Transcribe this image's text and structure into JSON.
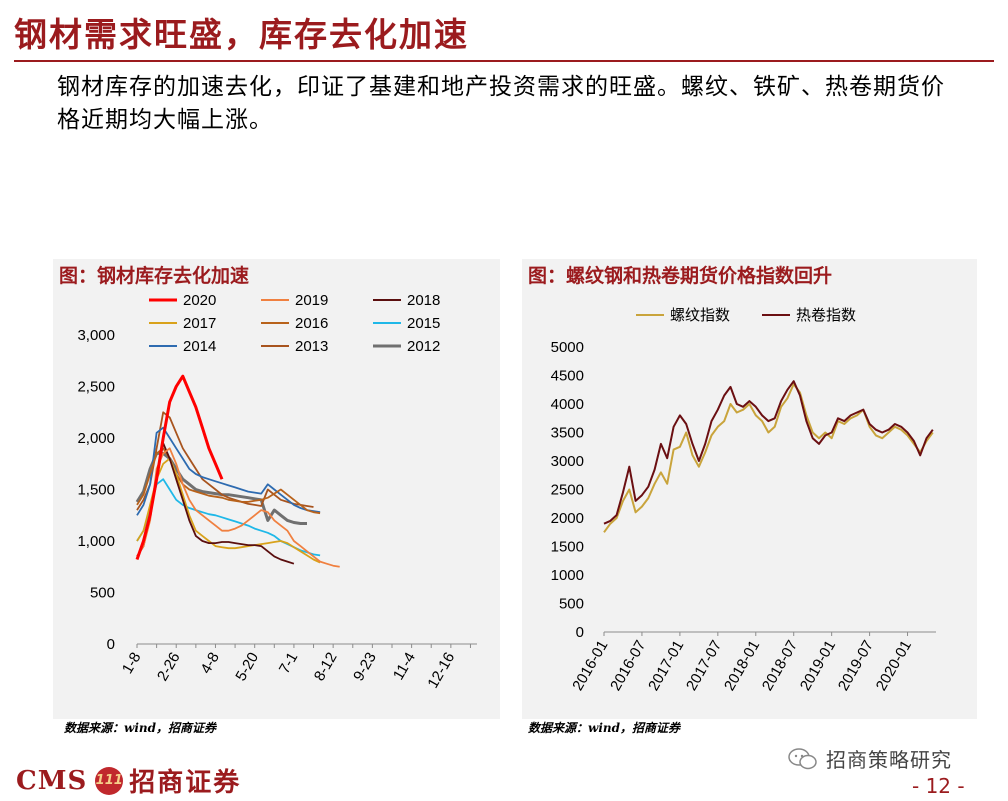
{
  "slide": {
    "title": "钢材需求旺盛，库存去化加速",
    "subtitle": "钢材库存的加速去化，印证了基建和地产投资需求的旺盛。螺纹、铁矿、热卷期货价格近期均大幅上涨。",
    "page_number": "- 12 -"
  },
  "footer": {
    "brand_en": "CMS",
    "brand_emblem": "111",
    "brand_cn": "招商证券",
    "wechat_account": "招商策略研究"
  },
  "left_chart": {
    "panel_title": "图：钢材库存去化加速",
    "source": "数据来源：wind，招商证券"
  },
  "right_chart": {
    "panel_title": "图：螺纹钢和热卷期货价格指数回升",
    "source": "数据来源：wind，招商证券"
  },
  "chart_data": [
    {
      "type": "line",
      "title": "图：钢材库存去化加速",
      "xlabel": "",
      "ylabel": "",
      "ylim": [
        0,
        3000
      ],
      "yticks": [
        "0",
        "500",
        "1,000",
        "1,500",
        "2,000",
        "2,500",
        "3,000"
      ],
      "x_tick_labels": [
        "1-8",
        "2-26",
        "4-8",
        "5-20",
        "7-1",
        "8-12",
        "9-23",
        "11-4",
        "12-16"
      ],
      "x_tick_index": [
        0,
        6,
        12,
        18,
        24,
        30,
        36,
        42,
        48
      ],
      "legend": [
        "2020",
        "2019",
        "2018",
        "2017",
        "2016",
        "2015",
        "2014",
        "2013",
        "2012"
      ],
      "legend_placement": "top",
      "series": [
        {
          "name": "2020",
          "color": "#ff0000",
          "values": [
            820,
            1000,
            1250,
            1600,
            2000,
            2350,
            2500,
            2600,
            2450,
            2300,
            2100,
            1900,
            1750,
            1600
          ]
        },
        {
          "name": "2019",
          "color": "#f08040",
          "values": [
            850,
            950,
            1200,
            1700,
            1850,
            1900,
            1750,
            1550,
            1400,
            1300,
            1250,
            1200,
            1150,
            1100,
            1100,
            1120,
            1150,
            1200,
            1250,
            1300,
            1280,
            1200,
            1150,
            1100,
            1000,
            950,
            900,
            850,
            800,
            780,
            760,
            750
          ]
        },
        {
          "name": "2018",
          "color": "#5a0e0e",
          "values": [
            850,
            950,
            1250,
            1600,
            1950,
            1800,
            1600,
            1400,
            1200,
            1050,
            1000,
            980,
            980,
            990,
            990,
            980,
            970,
            960,
            960,
            950,
            900,
            850,
            820,
            800,
            780
          ]
        },
        {
          "name": "2017",
          "color": "#d9a21b",
          "values": [
            1000,
            1100,
            1350,
            1600,
            1750,
            1800,
            1650,
            1450,
            1250,
            1100,
            1050,
            1000,
            950,
            940,
            930,
            930,
            940,
            950,
            960,
            970,
            980,
            990,
            1000,
            980,
            940,
            900,
            860,
            820,
            790
          ]
        },
        {
          "name": "2016",
          "color": "#b8621b",
          "values": [
            1350,
            1450,
            1650,
            1850,
            1900,
            1800,
            1650,
            1550,
            1500,
            1480,
            1460,
            1440,
            1430,
            1420,
            1400,
            1390,
            1380,
            1380,
            1390,
            1400,
            1420,
            1460,
            1500,
            1450,
            1400,
            1350,
            1300,
            1280,
            1270
          ]
        },
        {
          "name": "2015",
          "color": "#1fb8e8",
          "values": [
            1000,
            1100,
            1300,
            1550,
            1600,
            1500,
            1400,
            1350,
            1320,
            1300,
            1280,
            1260,
            1250,
            1230,
            1210,
            1190,
            1170,
            1150,
            1120,
            1100,
            1080,
            1050,
            1000,
            970,
            940,
            910,
            890,
            870,
            860
          ]
        },
        {
          "name": "2014",
          "color": "#2e6bb0",
          "values": [
            1250,
            1350,
            1550,
            2050,
            2100,
            2000,
            1900,
            1800,
            1700,
            1650,
            1620,
            1600,
            1580,
            1560,
            1540,
            1520,
            1500,
            1480,
            1470,
            1460,
            1550,
            1500,
            1450,
            1400,
            1350,
            1320,
            1300,
            1290,
            1280
          ]
        },
        {
          "name": "2013",
          "color": "#a8541e",
          "values": [
            1300,
            1400,
            1550,
            1900,
            2250,
            2200,
            2050,
            1900,
            1800,
            1700,
            1600,
            1550,
            1500,
            1450,
            1420,
            1400,
            1380,
            1360,
            1350,
            1340,
            1500,
            1450,
            1400,
            1380,
            1360,
            1350,
            1340,
            1330
          ]
        },
        {
          "name": "2012",
          "color": "#707070",
          "values": [
            1380,
            1480,
            1700,
            1850,
            1850,
            1800,
            1700,
            1600,
            1550,
            1500,
            1480,
            1470,
            1460,
            1450,
            1450,
            1440,
            1430,
            1420,
            1410,
            1400,
            1200,
            1300,
            1250,
            1200,
            1180,
            1170,
            1170
          ]
        }
      ]
    },
    {
      "type": "line",
      "title": "图：螺纹钢和热卷期货价格指数回升",
      "xlabel": "",
      "ylabel": "",
      "ylim": [
        0,
        5000
      ],
      "yticks": [
        "0",
        "500",
        "1000",
        "1500",
        "2000",
        "2500",
        "3000",
        "3500",
        "4000",
        "4500",
        "5000"
      ],
      "x_tick_labels": [
        "2016-01",
        "2016-07",
        "2017-01",
        "2017-07",
        "2018-01",
        "2018-07",
        "2019-01",
        "2019-07",
        "2020-01"
      ],
      "x_tick_month_index": [
        0,
        6,
        12,
        18,
        24,
        30,
        36,
        42,
        48
      ],
      "x_range_months": [
        0,
        52.5
      ],
      "legend": [
        "螺纹指数",
        "热卷指数"
      ],
      "legend_placement": "top",
      "series": [
        {
          "name": "螺纹指数",
          "color": "#c9a43c",
          "t": [
            0,
            1,
            2,
            3,
            4,
            5,
            6,
            7,
            8,
            9,
            10,
            11,
            12,
            13,
            14,
            15,
            16,
            17,
            18,
            19,
            20,
            21,
            22,
            23,
            24,
            25,
            26,
            27,
            28,
            29,
            30,
            31,
            32,
            33,
            34,
            35,
            36,
            37,
            38,
            39,
            40,
            41,
            42,
            43,
            44,
            45,
            46,
            47,
            48,
            49,
            50,
            51,
            52
          ],
          "values": [
            1750,
            1900,
            2000,
            2300,
            2500,
            2100,
            2200,
            2350,
            2600,
            2800,
            2600,
            3200,
            3250,
            3500,
            3100,
            2900,
            3150,
            3450,
            3600,
            3700,
            4000,
            3850,
            3900,
            4000,
            3800,
            3700,
            3500,
            3600,
            3950,
            4100,
            4350,
            4200,
            3800,
            3500,
            3400,
            3500,
            3400,
            3700,
            3650,
            3750,
            3800,
            3900,
            3600,
            3450,
            3400,
            3500,
            3600,
            3550,
            3450,
            3300,
            3150,
            3350,
            3500
          ]
        },
        {
          "name": "热卷指数",
          "color": "#6b0f12",
          "t": [
            0,
            1,
            2,
            3,
            4,
            5,
            6,
            7,
            8,
            9,
            10,
            11,
            12,
            13,
            14,
            15,
            16,
            17,
            18,
            19,
            20,
            21,
            22,
            23,
            24,
            25,
            26,
            27,
            28,
            29,
            30,
            31,
            32,
            33,
            34,
            35,
            36,
            37,
            38,
            39,
            40,
            41,
            42,
            43,
            44,
            45,
            46,
            47,
            48,
            49,
            50,
            51,
            52
          ],
          "values": [
            1900,
            1950,
            2050,
            2450,
            2900,
            2300,
            2400,
            2550,
            2850,
            3300,
            3050,
            3600,
            3800,
            3650,
            3300,
            3000,
            3300,
            3700,
            3900,
            4150,
            4300,
            4000,
            3950,
            4050,
            3950,
            3800,
            3700,
            3750,
            4050,
            4250,
            4400,
            4150,
            3700,
            3400,
            3300,
            3450,
            3500,
            3750,
            3700,
            3800,
            3850,
            3900,
            3650,
            3550,
            3500,
            3550,
            3650,
            3600,
            3500,
            3350,
            3100,
            3400,
            3550
          ]
        }
      ]
    }
  ]
}
